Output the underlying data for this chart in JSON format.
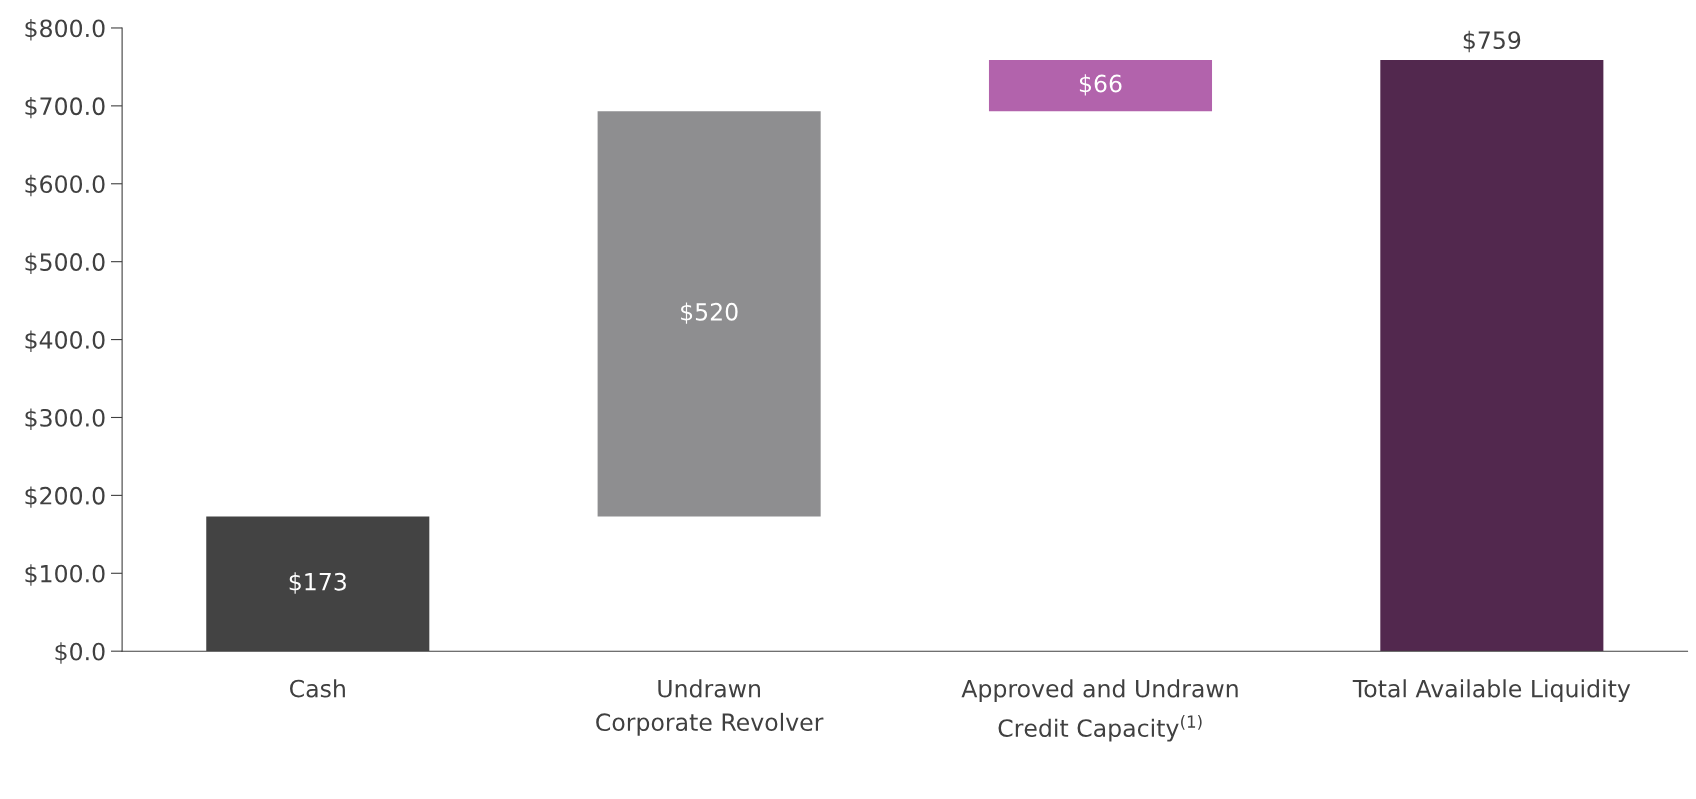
{
  "chart_data": {
    "type": "bar",
    "categories": [
      "Cash",
      "Undrawn\nCorporate Revolver",
      "Approved and Undrawn\nCredit Capacity$^{(1)}$",
      "Total Available Liquidity"
    ],
    "values": [
      173,
      520,
      66,
      759
    ],
    "base": [
      0,
      173,
      693,
      0
    ],
    "colors": [
      "#434343",
      "#8e8e90",
      "#b263ac",
      "#52284e"
    ],
    "value_labels": [
      "$173",
      "$520",
      "$66",
      "$759"
    ],
    "ylim": [
      0,
      800
    ],
    "yticks": [
      {
        "value": 0,
        "label": "$0.0"
      },
      {
        "value": 100,
        "label": "$100.0"
      },
      {
        "value": 200,
        "label": "$200.0"
      },
      {
        "value": 300,
        "label": "$300.0"
      },
      {
        "value": 400,
        "label": "$400.0"
      },
      {
        "value": 500,
        "label": "$500.0"
      },
      {
        "value": 600,
        "label": "$600.0"
      },
      {
        "value": 700,
        "label": "$700.0"
      },
      {
        "value": 800,
        "label": "$800.0"
      }
    ],
    "grid": false,
    "legend": false
  }
}
